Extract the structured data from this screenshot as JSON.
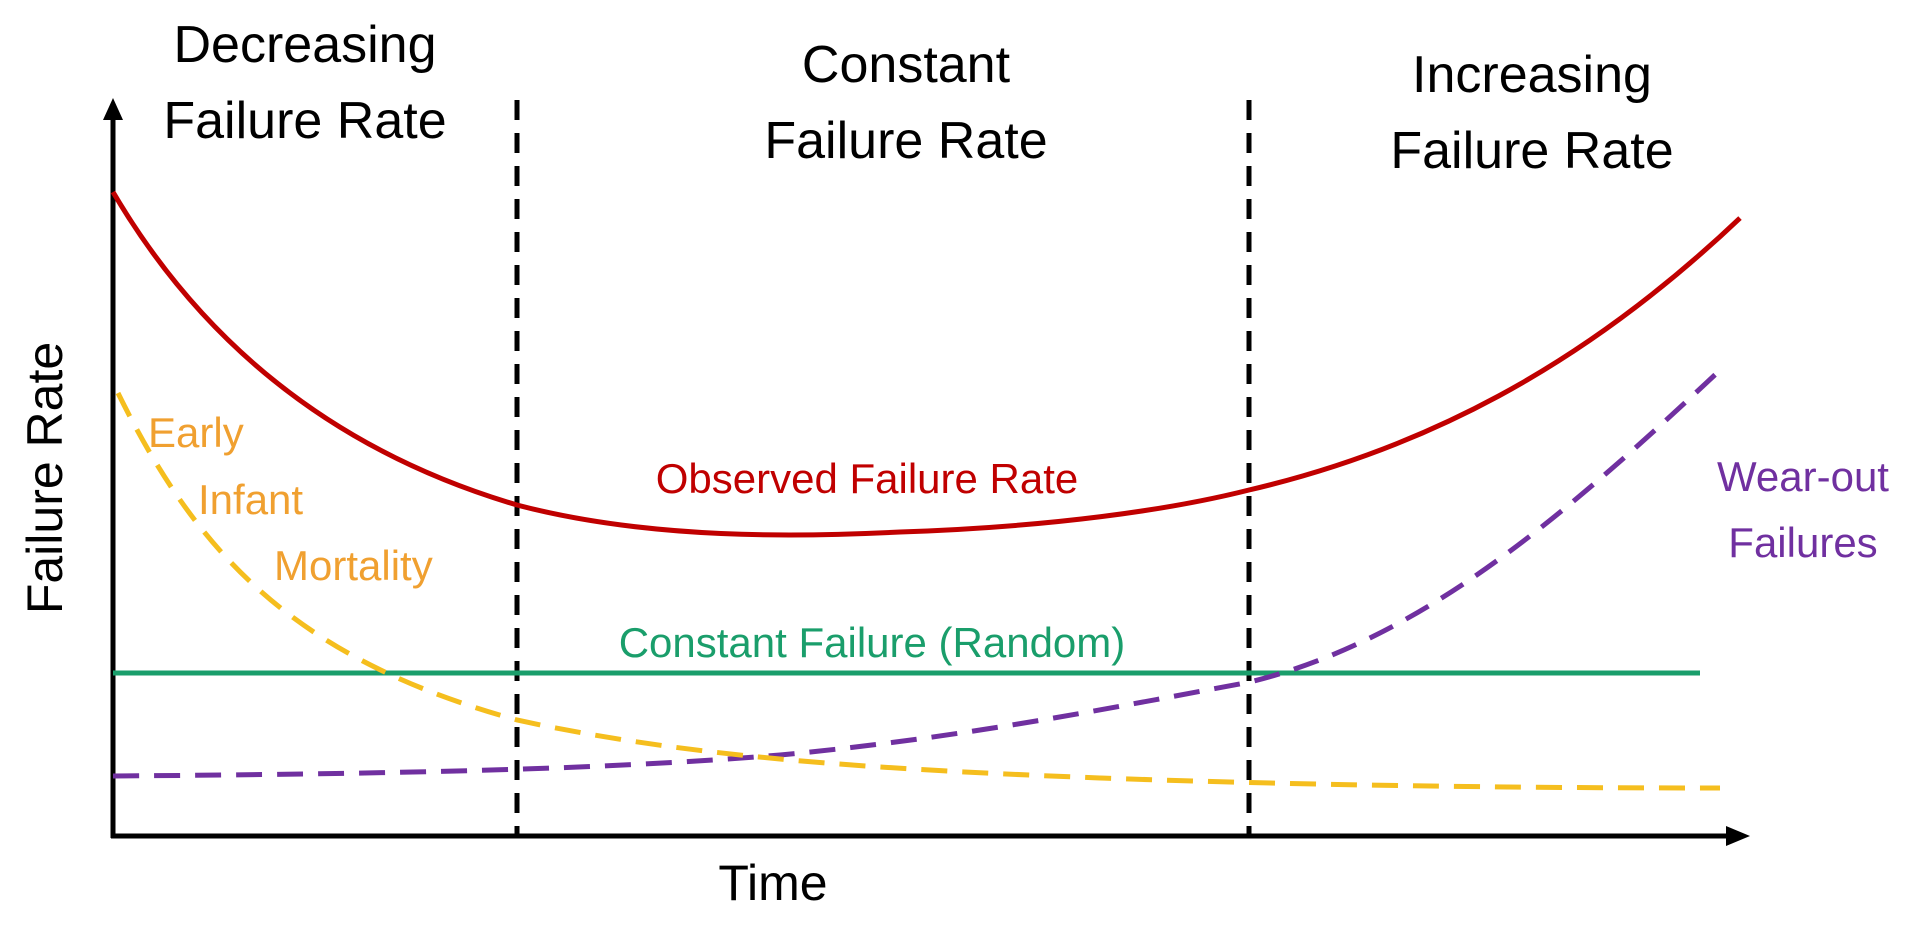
{
  "regions": [
    {
      "line1": "Decreasing",
      "line2": "Failure Rate"
    },
    {
      "line1": "Constant",
      "line2": "Failure Rate"
    },
    {
      "line1": "Increasing",
      "line2": "Failure Rate"
    }
  ],
  "axes": {
    "x_label": "Time",
    "y_label": "Failure Rate"
  },
  "curves": {
    "observed": {
      "label": "Observed Failure Rate",
      "color": "#c00000",
      "style": "solid"
    },
    "constant": {
      "label": "Constant Failure (Random)",
      "color": "#1a9e6b",
      "style": "solid"
    },
    "early": {
      "line1": "Early",
      "line2": "Infant",
      "line3": "Mortality",
      "color": "#f5be1e",
      "text_color": "#f0a030",
      "style": "dashed"
    },
    "wearout": {
      "line1": "Wear-out",
      "line2": "Failures",
      "color": "#7030a0",
      "style": "dashed"
    }
  },
  "chart_data": {
    "type": "line",
    "xlabel": "Time",
    "ylabel": "Failure Rate",
    "grid": false,
    "legend": "none",
    "regions": [
      "Decreasing Failure Rate",
      "Constant Failure Rate",
      "Increasing Failure Rate"
    ],
    "series": [
      {
        "name": "Observed Failure Rate",
        "color": "#c00000"
      },
      {
        "name": "Constant Failure (Random)",
        "color": "#1a9e6b"
      },
      {
        "name": "Early Infant Mortality",
        "color": "#f5be1e"
      },
      {
        "name": "Wear-out Failures",
        "color": "#7030a0"
      }
    ]
  }
}
